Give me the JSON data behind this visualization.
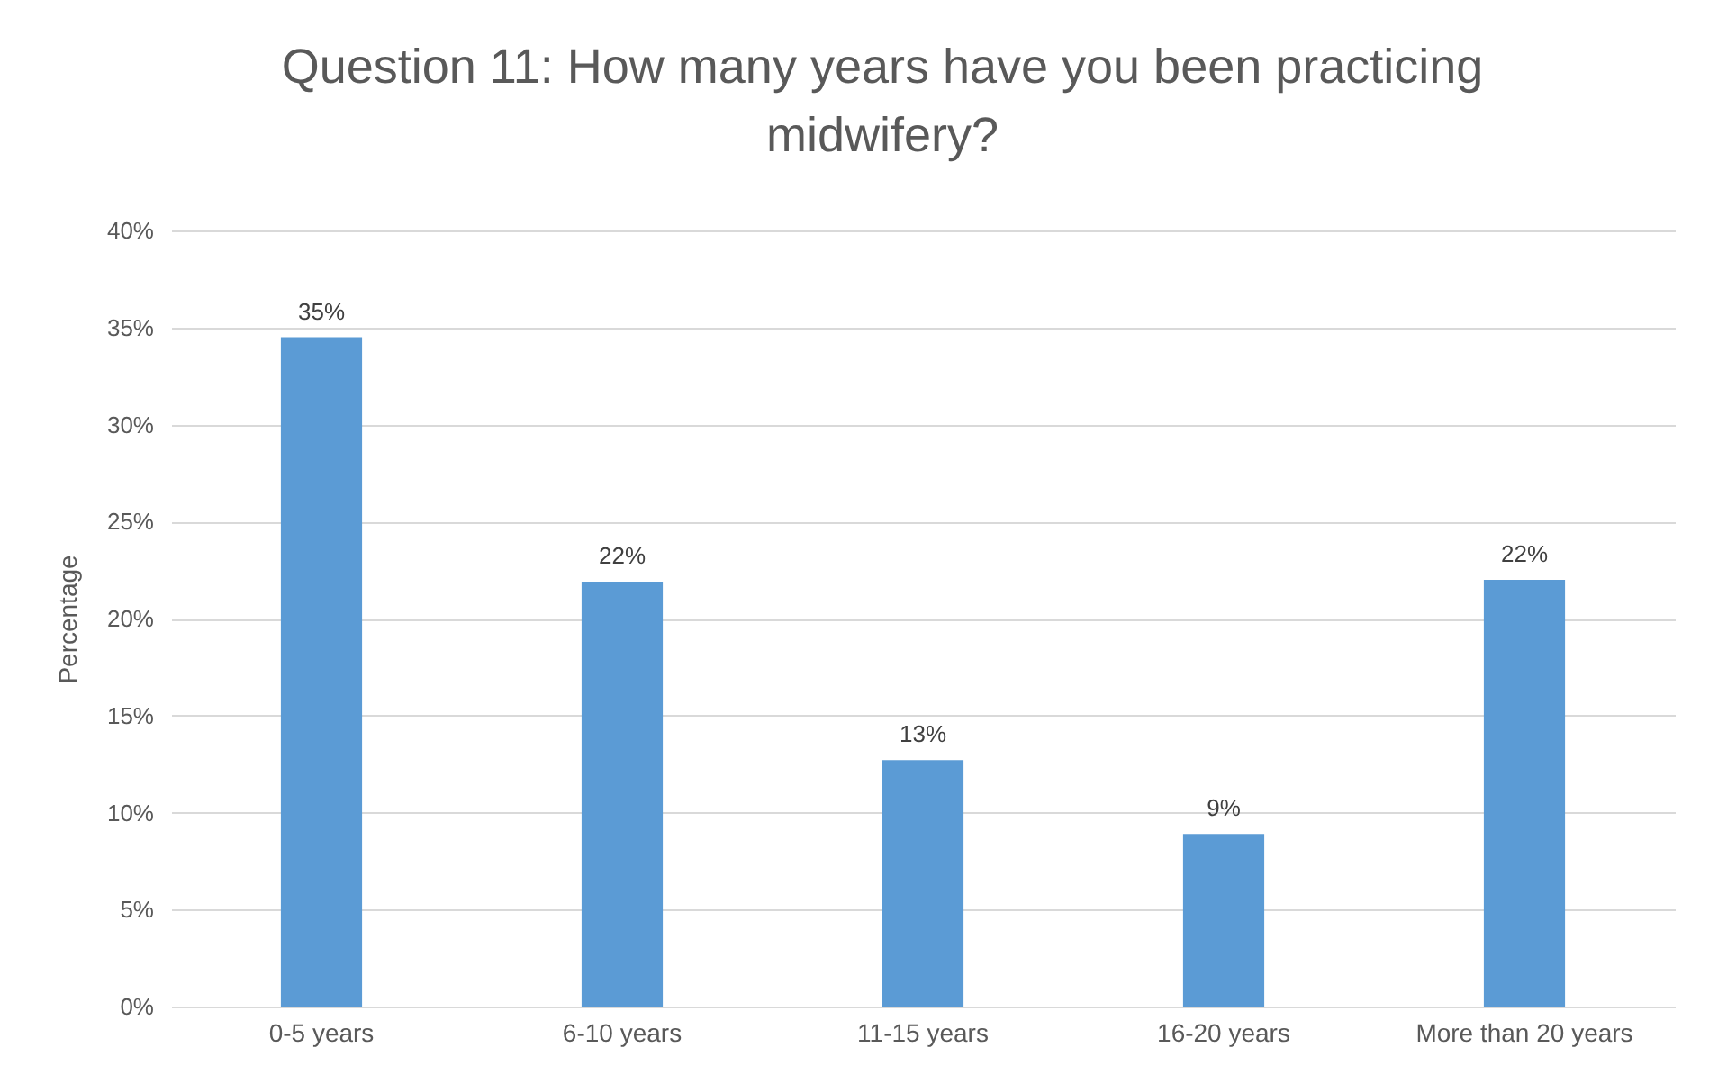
{
  "chart_data": {
    "type": "bar",
    "title": "Question 11: How many years have you been practicing midwifery?",
    "ylabel": "Percentage",
    "categories": [
      "0-5 years",
      "6-10 years",
      "11-15 years",
      "16-20 years",
      "More than 20 years"
    ],
    "values": [
      34.5,
      21.9,
      12.7,
      8.9,
      22.0
    ],
    "value_labels": [
      "35%",
      "22%",
      "13%",
      "9%",
      "22%"
    ],
    "color": "#5b9bd5",
    "ylim": [
      0,
      40
    ],
    "yticks": [
      {
        "value": 0,
        "label": "0%"
      },
      {
        "value": 5,
        "label": "5%"
      },
      {
        "value": 10,
        "label": "10%"
      },
      {
        "value": 15,
        "label": "15%"
      },
      {
        "value": 20,
        "label": "20%"
      },
      {
        "value": 25,
        "label": "25%"
      },
      {
        "value": 30,
        "label": "30%"
      },
      {
        "value": 35,
        "label": "35%"
      },
      {
        "value": 40,
        "label": "40%"
      }
    ],
    "grid": "y"
  }
}
